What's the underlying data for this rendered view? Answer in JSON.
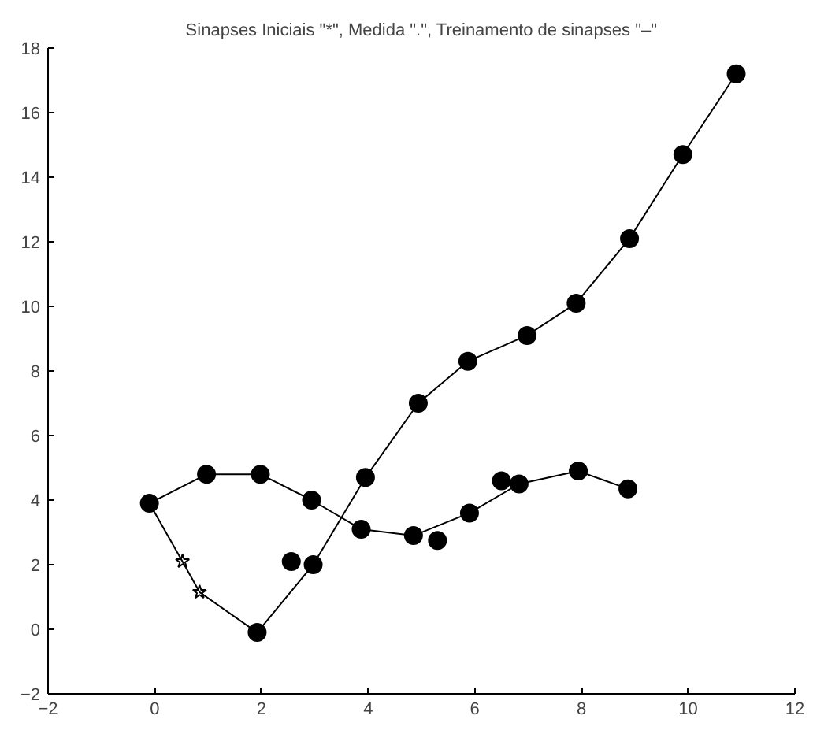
{
  "chart_data": {
    "type": "line",
    "title": "Sinapses Iniciais \"*\", Medida \".\", Treinamento de sinapses \"–\"",
    "xlim": [
      -2,
      12
    ],
    "ylim": [
      -2,
      18
    ],
    "xticks": [
      -2,
      0,
      2,
      4,
      6,
      8,
      10,
      12
    ],
    "yticks": [
      -2,
      0,
      2,
      4,
      6,
      8,
      10,
      12,
      14,
      16,
      18
    ],
    "grid": false,
    "line_style": "solid",
    "series": [
      {
        "color": "#000000",
        "marker": "none",
        "x": [
          -0.1,
          0.52,
          0.84,
          1.92,
          2.97,
          3.95,
          4.94,
          5.87,
          6.98,
          7.9,
          8.9,
          9.9,
          10.9
        ],
        "values": [
          3.9,
          2.1,
          1.15,
          -0.1,
          2.0,
          4.7,
          7.0,
          8.3,
          9.1,
          10.1,
          12.1,
          14.7,
          17.2
        ]
      },
      {
        "color": "#000000",
        "marker": "none",
        "x": [
          -0.1,
          0.97,
          1.98,
          2.94,
          3.87,
          4.85,
          5.9,
          6.83,
          7.94,
          8.87
        ],
        "values": [
          3.9,
          4.8,
          4.8,
          4.0,
          3.1,
          2.9,
          3.6,
          4.5,
          4.9,
          4.35
        ]
      },
      {
        "type": "scatter",
        "color": "#000000",
        "marker": "star",
        "x": [
          0.52,
          0.84
        ],
        "values": [
          2.1,
          1.15
        ]
      },
      {
        "type": "scatter",
        "color": "#000000",
        "marker": "circle",
        "x": [
          -0.1,
          0.97,
          1.98,
          1.92,
          2.94,
          2.97,
          2.56,
          3.95,
          3.87,
          4.94,
          4.85,
          5.3,
          5.87,
          5.9,
          6.98,
          6.83,
          6.5,
          7.9,
          7.94,
          8.9,
          8.87,
          9.9,
          10.9
        ],
        "values": [
          3.9,
          4.8,
          4.8,
          -0.1,
          4.0,
          2.0,
          2.1,
          4.7,
          3.1,
          7.0,
          2.9,
          2.75,
          8.3,
          3.6,
          9.1,
          4.5,
          4.6,
          10.1,
          4.9,
          12.1,
          4.35,
          14.7,
          17.2
        ]
      }
    ]
  }
}
